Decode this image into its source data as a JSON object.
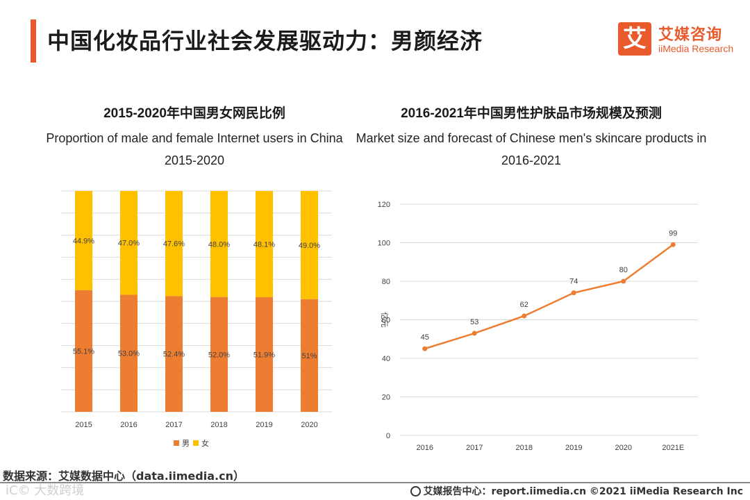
{
  "header": {
    "title": "中国化妆品行业社会发展驱动力：男颜经济",
    "logo_mark": "艾",
    "logo_cn": "艾媒咨询",
    "logo_en": "iiMedia Research"
  },
  "chart_data": [
    {
      "type": "bar",
      "stacked": true,
      "percent": true,
      "title_cn": "2015-2020年中国男女网民比例",
      "title_en_line1": "Proportion of male and female Internet users in China",
      "title_en_line2": "2015-2020",
      "categories": [
        "2015",
        "2016",
        "2017",
        "2018",
        "2019",
        "2020"
      ],
      "series": [
        {
          "name": "男",
          "color": "#ed7d31",
          "values": [
            55.1,
            53.0,
            52.4,
            52.0,
            51.9,
            51.0
          ],
          "labels": [
            "55.1%",
            "53.0%",
            "52.4%",
            "52.0%",
            "51.9%",
            "51%"
          ]
        },
        {
          "name": "女",
          "color": "#ffc000",
          "values": [
            44.9,
            47.0,
            47.6,
            48.0,
            48.1,
            49.0
          ],
          "labels": [
            "44.9%",
            "47.0%",
            "47.6%",
            "48.0%",
            "48.1%",
            "49.0%"
          ]
        }
      ],
      "ylim": [
        0,
        100
      ],
      "grid": true,
      "legend": "bottom"
    },
    {
      "type": "line",
      "title_cn": "2016-2021年中国男性护肤品市场规模及预测",
      "title_en_line1": "Market size and forecast of Chinese men's skincare products in",
      "title_en_line2": "2016-2021",
      "categories": [
        "2016",
        "2017",
        "2018",
        "2019",
        "2020",
        "2021E"
      ],
      "values": [
        45,
        53,
        62,
        74,
        80,
        99
      ],
      "color": "#ed7d31",
      "ylabel": "亿元",
      "ylim": [
        0,
        120
      ],
      "yticks": [
        0,
        20,
        40,
        60,
        80,
        100,
        120
      ],
      "grid": true
    }
  ],
  "footer": {
    "source": "数据来源：艾媒数据中心（data.iimedia.cn）",
    "right_text": "艾媒报告中心：report.iimedia.cn ©2021 iiMedia Research Inc",
    "watermark": "iC© 大数跨境"
  }
}
